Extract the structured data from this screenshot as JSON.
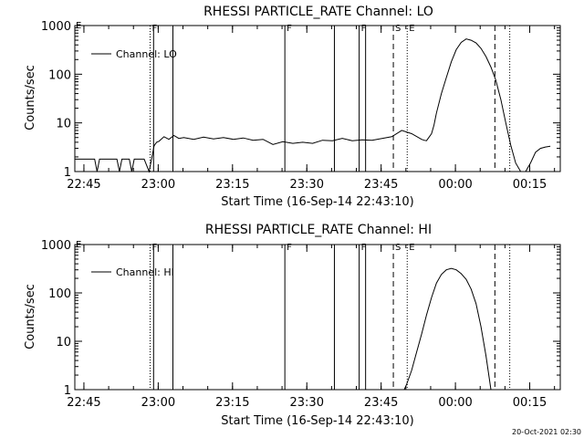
{
  "footer_date": "20-Oct-2021 02:30",
  "chart_data": [
    {
      "type": "line",
      "title": "RHESSI PARTICLE_RATE Channel: LO",
      "xlabel": "Start Time (16-Sep-14 22:43:10)",
      "ylabel": "Counts/sec",
      "yscale": "log",
      "ylim": [
        1,
        1000
      ],
      "xlim_minutes_from_start": [
        0,
        98
      ],
      "x_ticks": [
        "22:45",
        "23:00",
        "23:15",
        "23:30",
        "23:45",
        "00:00",
        "00:15"
      ],
      "y_ticks": [
        "1",
        "10",
        "100",
        "1000"
      ],
      "legend": "top-left",
      "series": [
        {
          "name": "Channel: LO",
          "x": [
            0,
            4,
            4.5,
            5,
            8.5,
            9,
            9.5,
            10,
            11,
            11.5,
            12,
            13,
            14,
            15,
            15.5,
            16,
            16.5,
            17,
            18,
            19,
            20,
            21,
            22,
            24,
            26,
            28,
            30,
            32,
            34,
            36,
            38,
            40,
            42,
            44,
            46,
            48,
            50,
            52,
            54,
            56,
            58,
            60,
            62,
            64,
            66,
            68,
            70,
            70.5,
            71,
            72,
            72.5,
            73,
            74,
            75,
            76,
            77,
            78,
            79,
            80,
            81,
            82,
            83,
            84,
            85,
            86,
            87,
            88,
            89,
            90,
            91,
            92,
            93,
            94,
            95,
            96
          ],
          "y": [
            1.8,
            1.8,
            1,
            1.8,
            1.8,
            1,
            1.8,
            1.8,
            1.8,
            1,
            1.8,
            1.8,
            1.8,
            1,
            1.8,
            3.4,
            4,
            4.2,
            5.2,
            4.6,
            5.5,
            4.8,
            5.0,
            4.6,
            5.1,
            4.7,
            5.0,
            4.6,
            4.9,
            4.4,
            4.6,
            3.6,
            4.1,
            3.8,
            4.0,
            3.8,
            4.4,
            4.3,
            4.8,
            4.3,
            4.5,
            4.4,
            4.8,
            5.2,
            7,
            6,
            4.6,
            4.4,
            4.3,
            6,
            9,
            16,
            40,
            85,
            180,
            320,
            450,
            530,
            500,
            440,
            340,
            230,
            140,
            75,
            30,
            10,
            3.5,
            1.5,
            1,
            1,
            1.5,
            2.5,
            3,
            3.2,
            3.3
          ]
        }
      ],
      "vlines": [
        {
          "x": 15.2,
          "style": "dotted",
          "label": "F"
        },
        {
          "x": 15.9,
          "style": "solid",
          "label": ""
        },
        {
          "x": 19.8,
          "style": "solid",
          "label": ""
        },
        {
          "x": 42.4,
          "style": "solid",
          "label": "F"
        },
        {
          "x": 52.4,
          "style": "solid",
          "label": ""
        },
        {
          "x": 57.4,
          "style": "solid",
          "label": "F"
        },
        {
          "x": 58.7,
          "style": "solid",
          "label": ""
        },
        {
          "x": 64.3,
          "style": "dashed",
          "label": "S"
        },
        {
          "x": 67.1,
          "style": "dotted",
          "label": "E"
        },
        {
          "x": 84.8,
          "style": "dashed",
          "label": ""
        },
        {
          "x": 87.8,
          "style": "dotted",
          "label": ""
        }
      ],
      "corner_label": "E"
    },
    {
      "type": "line",
      "title": "RHESSI PARTICLE_RATE Channel: HI",
      "xlabel": "Start Time (16-Sep-14 22:43:10)",
      "ylabel": "Counts/sec",
      "yscale": "log",
      "ylim": [
        1,
        1000
      ],
      "xlim_minutes_from_start": [
        0,
        98
      ],
      "x_ticks": [
        "22:45",
        "23:00",
        "23:15",
        "23:30",
        "23:45",
        "00:00",
        "00:15"
      ],
      "y_ticks": [
        "1",
        "10",
        "100",
        "1000"
      ],
      "legend": "top-left",
      "series": [
        {
          "name": "Channel: HI",
          "x": [
            66.5,
            67,
            68,
            69,
            70,
            71,
            72,
            73,
            74,
            75,
            76,
            77,
            78,
            79,
            80,
            81,
            82,
            83,
            84
          ],
          "y": [
            1,
            1.3,
            2.5,
            6,
            14,
            35,
            80,
            160,
            240,
            300,
            320,
            300,
            250,
            190,
            120,
            60,
            20,
            5,
            1
          ]
        }
      ],
      "vlines": [
        {
          "x": 15.2,
          "style": "dotted",
          "label": "F"
        },
        {
          "x": 15.9,
          "style": "solid",
          "label": ""
        },
        {
          "x": 19.8,
          "style": "solid",
          "label": ""
        },
        {
          "x": 42.4,
          "style": "solid",
          "label": "F"
        },
        {
          "x": 52.4,
          "style": "solid",
          "label": ""
        },
        {
          "x": 57.4,
          "style": "solid",
          "label": "F"
        },
        {
          "x": 58.7,
          "style": "solid",
          "label": ""
        },
        {
          "x": 64.3,
          "style": "dashed",
          "label": "S"
        },
        {
          "x": 67.1,
          "style": "dotted",
          "label": "E"
        },
        {
          "x": 84.8,
          "style": "dashed",
          "label": ""
        },
        {
          "x": 87.8,
          "style": "dotted",
          "label": ""
        }
      ],
      "corner_label": "E"
    }
  ]
}
